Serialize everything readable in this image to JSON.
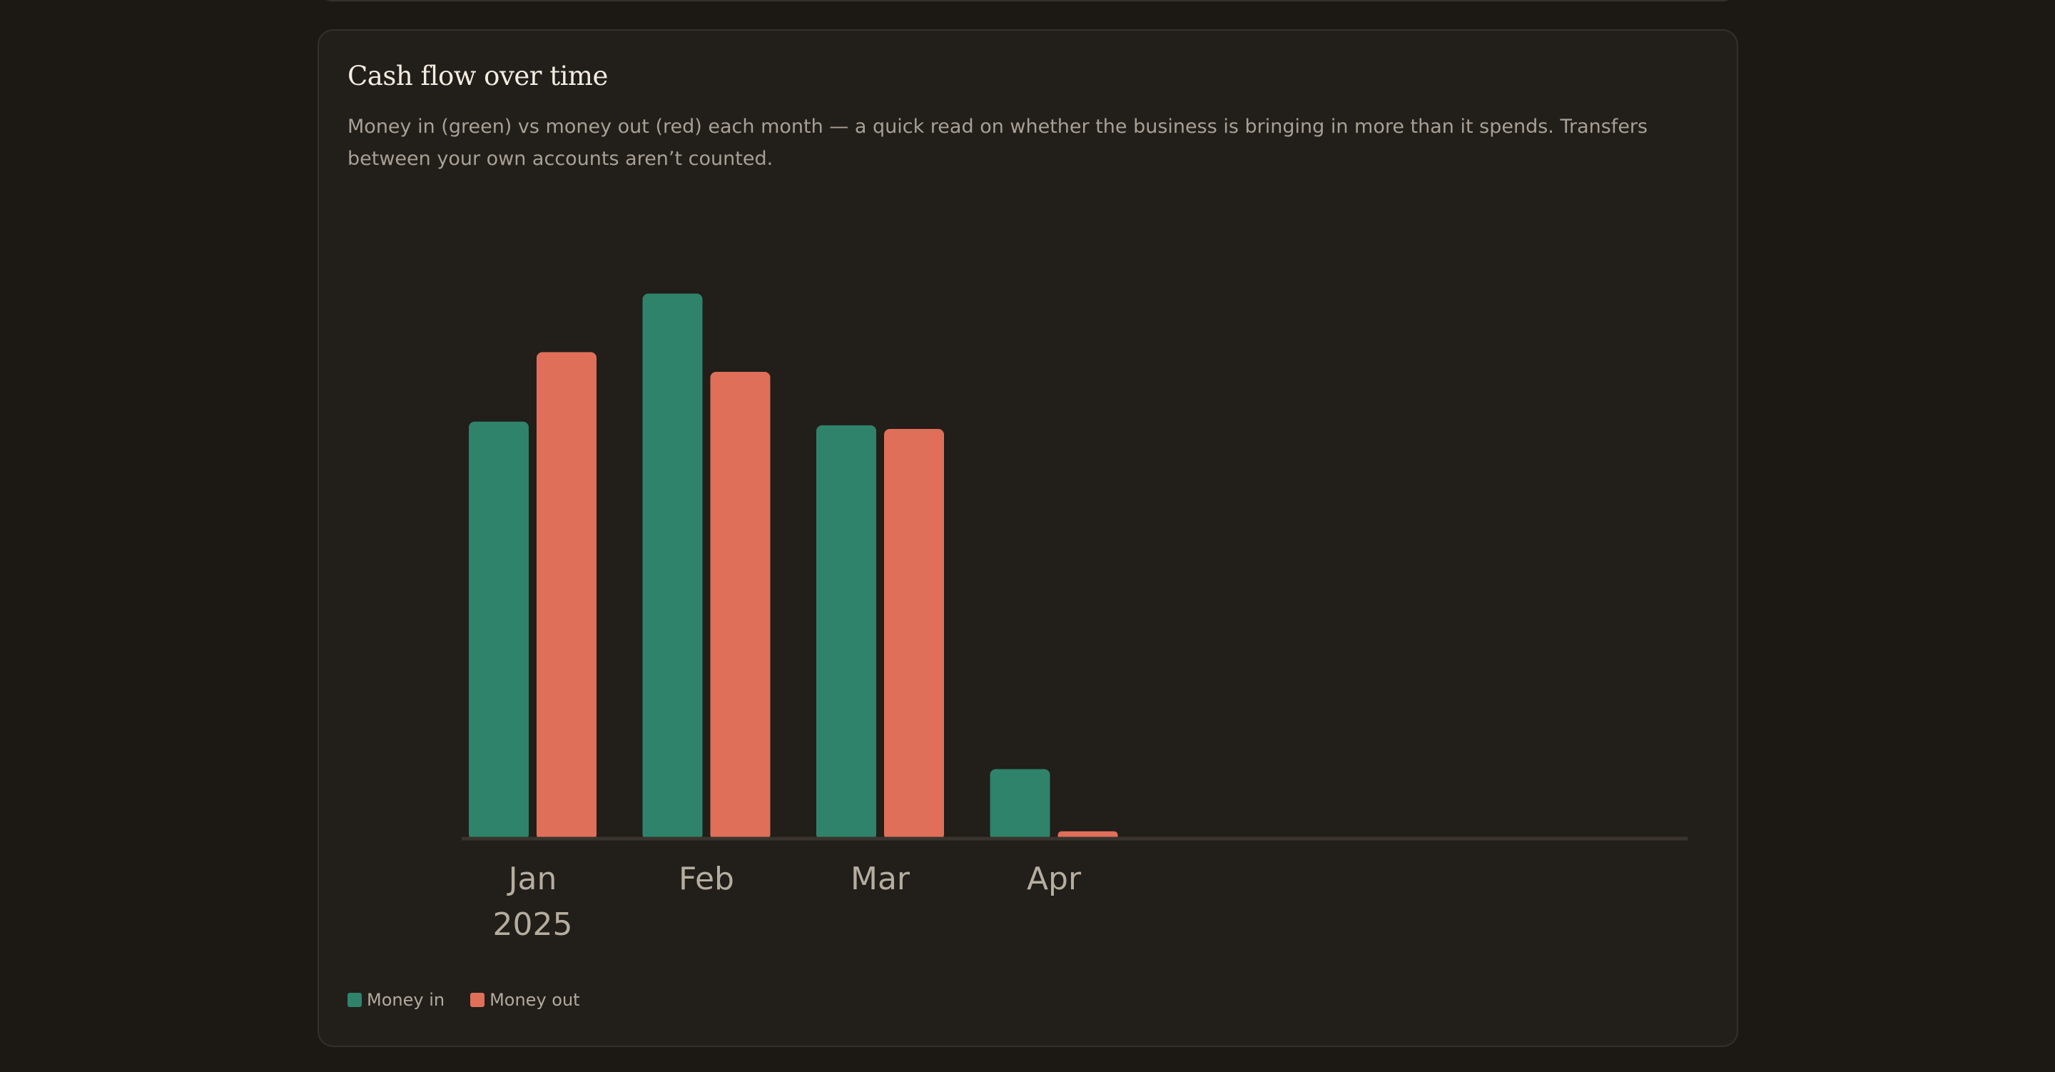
{
  "card": {
    "title": "Cash flow over time",
    "description": "Money in (green) vs money out (red) each month — a quick read on whether the business is bringing in more than it spends. Transfers between your own accounts aren’t counted."
  },
  "colors": {
    "background": "#1c1915",
    "card": "#221e1a",
    "money_in": "#2f836a",
    "money_out": "#e06f5a"
  },
  "chart_data": {
    "type": "bar",
    "categories": [
      "Jan",
      "Feb",
      "Mar",
      "Apr"
    ],
    "category_sublabels": [
      "2025",
      "",
      "",
      ""
    ],
    "series": [
      {
        "name": "Money in",
        "color": "#2f836a",
        "values": [
          570,
          745,
          565,
          95
        ]
      },
      {
        "name": "Money out",
        "color": "#e06f5a",
        "values": [
          665,
          638,
          560,
          10
        ]
      }
    ],
    "ylim": [
      0,
      800
    ],
    "grid": false,
    "legend": "bottom-left"
  },
  "legend": {
    "items": [
      {
        "label": "Money in",
        "color": "#2f836a"
      },
      {
        "label": "Money out",
        "color": "#e06f5a"
      }
    ]
  }
}
